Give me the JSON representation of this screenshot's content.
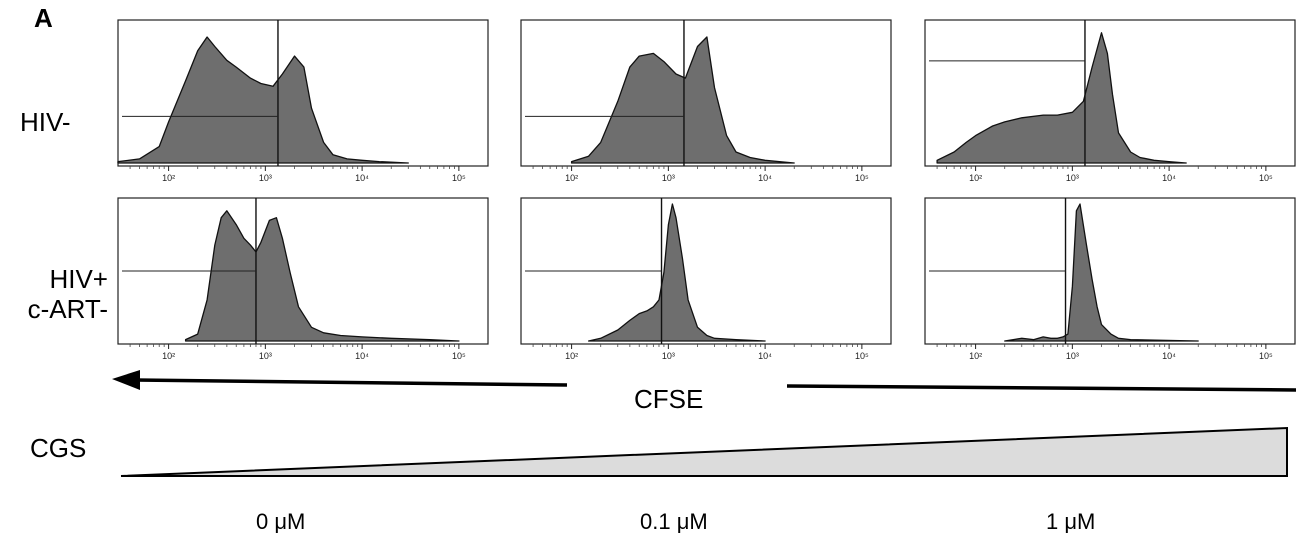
{
  "panel_label": "A",
  "row_labels": [
    "HIV-",
    "HIV+\nc-ART-"
  ],
  "row_label_lines": [
    [
      "HIV-"
    ],
    [
      "HIV+",
      "c-ART-"
    ]
  ],
  "xlabel": "CFSE",
  "gradient_label": "CGS",
  "concentrations": [
    "0 μM",
    "0.1 μM",
    "1 μM"
  ],
  "colors": {
    "fill": "#6e6e6e",
    "stroke": "#111111",
    "gradient_fill": "#dcdcdc"
  },
  "chart_data": [
    {
      "type": "area",
      "row": "HIV-",
      "column": "0 μM",
      "x_scale": "log",
      "xlim": [
        30,
        200000
      ],
      "x_ticks": [
        "10²",
        "10³",
        "10⁴",
        "10⁵"
      ],
      "x_tick_values": [
        100,
        1000,
        10000,
        100000
      ],
      "gate_x": 1350,
      "x": [
        30,
        50,
        80,
        100,
        150,
        200,
        250,
        300,
        400,
        500,
        700,
        900,
        1200,
        1500,
        2000,
        2500,
        3000,
        4000,
        5000,
        7000,
        10000,
        15000,
        30000
      ],
      "y": [
        0.01,
        0.03,
        0.12,
        0.3,
        0.6,
        0.82,
        0.92,
        0.85,
        0.75,
        0.7,
        0.62,
        0.58,
        0.56,
        0.65,
        0.78,
        0.7,
        0.4,
        0.15,
        0.06,
        0.03,
        0.02,
        0.01,
        0
      ]
    },
    {
      "type": "area",
      "row": "HIV-",
      "column": "0.1 μM",
      "x_scale": "log",
      "xlim": [
        30,
        200000
      ],
      "x_ticks": [
        "10²",
        "10³",
        "10⁴",
        "10⁵"
      ],
      "x_tick_values": [
        100,
        1000,
        10000,
        100000
      ],
      "gate_x": 1450,
      "x": [
        100,
        150,
        200,
        300,
        400,
        500,
        700,
        900,
        1200,
        1500,
        2000,
        2500,
        3000,
        4000,
        5000,
        7000,
        10000,
        20000
      ],
      "y": [
        0.01,
        0.05,
        0.15,
        0.45,
        0.7,
        0.78,
        0.8,
        0.74,
        0.65,
        0.62,
        0.85,
        0.92,
        0.55,
        0.2,
        0.08,
        0.04,
        0.02,
        0
      ]
    },
    {
      "type": "area",
      "row": "HIV-",
      "column": "1 μM",
      "x_scale": "log",
      "xlim": [
        30,
        200000
      ],
      "x_ticks": [
        "10²",
        "10³",
        "10⁴",
        "10⁵"
      ],
      "x_tick_values": [
        100,
        1000,
        10000,
        100000
      ],
      "gate_x": 1350,
      "x": [
        40,
        60,
        80,
        100,
        150,
        200,
        300,
        500,
        700,
        1000,
        1300,
        1600,
        2000,
        2300,
        2600,
        3000,
        4000,
        5000,
        7000,
        10000,
        15000
      ],
      "y": [
        0.02,
        0.08,
        0.15,
        0.2,
        0.27,
        0.3,
        0.33,
        0.35,
        0.35,
        0.37,
        0.45,
        0.7,
        0.95,
        0.8,
        0.5,
        0.22,
        0.08,
        0.04,
        0.02,
        0.01,
        0
      ]
    },
    {
      "type": "area",
      "row": "HIV+ c-ART-",
      "column": "0 μM",
      "x_scale": "log",
      "xlim": [
        30,
        200000
      ],
      "x_ticks": [
        "10²",
        "10³",
        "10⁴",
        "10⁵"
      ],
      "x_tick_values": [
        100,
        1000,
        10000,
        100000
      ],
      "gate_x": 800,
      "x": [
        150,
        200,
        250,
        300,
        350,
        400,
        500,
        600,
        700,
        800,
        900,
        1100,
        1300,
        1500,
        1800,
        2200,
        3000,
        4000,
        6000,
        10000,
        20000,
        50000,
        100000
      ],
      "y": [
        0.01,
        0.05,
        0.3,
        0.7,
        0.9,
        0.95,
        0.85,
        0.75,
        0.7,
        0.65,
        0.72,
        0.88,
        0.9,
        0.75,
        0.5,
        0.25,
        0.1,
        0.06,
        0.04,
        0.03,
        0.02,
        0.01,
        0
      ]
    },
    {
      "type": "area",
      "row": "HIV+ c-ART-",
      "column": "0.1 μM",
      "x_scale": "log",
      "xlim": [
        30,
        200000
      ],
      "x_ticks": [
        "10²",
        "10³",
        "10⁴",
        "10⁵"
      ],
      "x_tick_values": [
        100,
        1000,
        10000,
        100000
      ],
      "gate_x": 850,
      "x": [
        150,
        200,
        300,
        400,
        500,
        600,
        700,
        800,
        900,
        1000,
        1100,
        1200,
        1400,
        1600,
        2000,
        2500,
        3000,
        5000,
        10000
      ],
      "y": [
        0,
        0.02,
        0.08,
        0.15,
        0.2,
        0.22,
        0.25,
        0.3,
        0.5,
        0.85,
        1.0,
        0.9,
        0.6,
        0.3,
        0.1,
        0.04,
        0.02,
        0.01,
        0
      ]
    },
    {
      "type": "area",
      "row": "HIV+ c-ART-",
      "column": "1 μM",
      "x_scale": "log",
      "xlim": [
        30,
        200000
      ],
      "x_ticks": [
        "10²",
        "10³",
        "10⁴",
        "10⁵"
      ],
      "x_tick_values": [
        100,
        1000,
        10000,
        100000
      ],
      "gate_x": 850,
      "x": [
        200,
        300,
        400,
        500,
        600,
        700,
        800,
        900,
        1000,
        1100,
        1200,
        1400,
        1600,
        1800,
        2000,
        2500,
        3000,
        4000,
        20000
      ],
      "y": [
        0,
        0.02,
        0.01,
        0.03,
        0.02,
        0.02,
        0.03,
        0.05,
        0.4,
        0.95,
        1.0,
        0.7,
        0.45,
        0.25,
        0.12,
        0.05,
        0.02,
        0.01,
        0
      ]
    }
  ]
}
